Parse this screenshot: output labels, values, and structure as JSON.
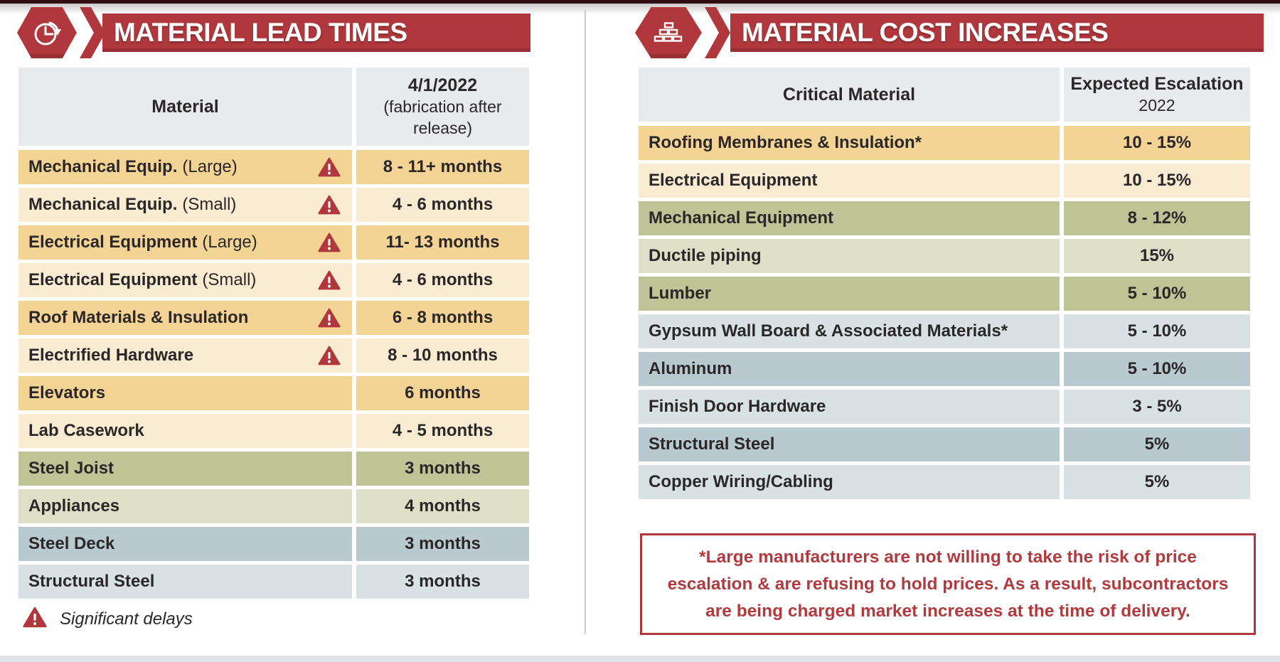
{
  "left": {
    "banner": {
      "title": "MATERIAL LEAD TIMES",
      "icon": "clock-history-icon"
    },
    "table": {
      "headers": {
        "material": "Material",
        "date": "4/1/2022",
        "date_sub": "(fabrication after release)"
      },
      "rows": [
        {
          "name": "Mechanical Equip.",
          "suffix": "(Large)",
          "warning": true,
          "value": "8 - 11+ months",
          "tone": "tan-dark"
        },
        {
          "name": "Mechanical Equip.",
          "suffix": "(Small)",
          "warning": true,
          "value": "4 - 6 months",
          "tone": "tan-light"
        },
        {
          "name": "Electrical Equipment",
          "suffix": "(Large)",
          "warning": true,
          "value": "11- 13 months",
          "tone": "tan-dark"
        },
        {
          "name": "Electrical Equipment",
          "suffix": "(Small)",
          "warning": true,
          "value": "4 - 6 months",
          "tone": "tan-light"
        },
        {
          "name": "Roof Materials & Insulation",
          "suffix": "",
          "warning": true,
          "value": "6 - 8 months",
          "tone": "tan-dark"
        },
        {
          "name": "Electrified Hardware",
          "suffix": "",
          "warning": true,
          "value": "8 - 10 months",
          "tone": "tan-light"
        },
        {
          "name": "Elevators",
          "suffix": "",
          "warning": false,
          "value": "6 months",
          "tone": "tan-dark"
        },
        {
          "name": "Lab Casework",
          "suffix": "",
          "warning": false,
          "value": "4 - 5 months",
          "tone": "tan-light"
        },
        {
          "name": "Steel Joist",
          "suffix": "",
          "warning": false,
          "value": "3 months",
          "tone": "olive-dark"
        },
        {
          "name": "Appliances",
          "suffix": "",
          "warning": false,
          "value": "4 months",
          "tone": "olive-light"
        },
        {
          "name": "Steel Deck",
          "suffix": "",
          "warning": false,
          "value": "3 months",
          "tone": "blue-dark"
        },
        {
          "name": "Structural Steel",
          "suffix": "",
          "warning": false,
          "value": "3 months",
          "tone": "blue-light"
        }
      ]
    },
    "legend": {
      "label": "Significant delays"
    }
  },
  "right": {
    "banner": {
      "title": "MATERIAL COST INCREASES",
      "icon": "bricks-icon"
    },
    "table": {
      "headers": {
        "material": "Critical Material",
        "escalation": "Expected Escalation",
        "escalation_sub": "2022"
      },
      "rows": [
        {
          "name": "Roofing Membranes & Insulation*",
          "suffix": "",
          "warning": false,
          "value": "10 - 15%",
          "tone": "tan-dark"
        },
        {
          "name": "Electrical Equipment",
          "suffix": "",
          "warning": false,
          "value": "10 - 15%",
          "tone": "tan-light"
        },
        {
          "name": "Mechanical Equipment",
          "suffix": "",
          "warning": false,
          "value": "8 - 12%",
          "tone": "olive-dark"
        },
        {
          "name": "Ductile piping",
          "suffix": "",
          "warning": false,
          "value": "15%",
          "tone": "olive-light"
        },
        {
          "name": "Lumber",
          "suffix": "",
          "warning": false,
          "value": "5 - 10%",
          "tone": "olive-dark"
        },
        {
          "name": "Gypsum Wall Board & Associated Materials*",
          "suffix": "",
          "warning": false,
          "value": "5 - 10%",
          "tone": "blue-light"
        },
        {
          "name": "Aluminum",
          "suffix": "",
          "warning": false,
          "value": "5 - 10%",
          "tone": "blue-dark"
        },
        {
          "name": "Finish Door Hardware",
          "suffix": "",
          "warning": false,
          "value": "3 - 5%",
          "tone": "blue-light"
        },
        {
          "name": "Structural Steel",
          "suffix": "",
          "warning": false,
          "value": "5%",
          "tone": "blue-dark"
        },
        {
          "name": "Copper Wiring/Cabling",
          "suffix": "",
          "warning": false,
          "value": "5%",
          "tone": "blue-light"
        }
      ]
    },
    "note": {
      "text": "*Large manufacturers are not willing to take the risk of price escalation & are refusing to hold prices. As a result, subcontractors are being charged market increases at the time of delivery."
    }
  },
  "colors": {
    "banner_red": "#b0383c",
    "note_red": "#b13a3e",
    "tan_dark": "#f3d495",
    "tan_light": "#f9ecd2",
    "olive_dark": "#bfc496",
    "olive_light": "#dde0c6",
    "blue_dark": "#b8cad0",
    "blue_light": "#d8e2e5",
    "header_gray": "#e9eaec",
    "text_dark": "#2b2728"
  }
}
